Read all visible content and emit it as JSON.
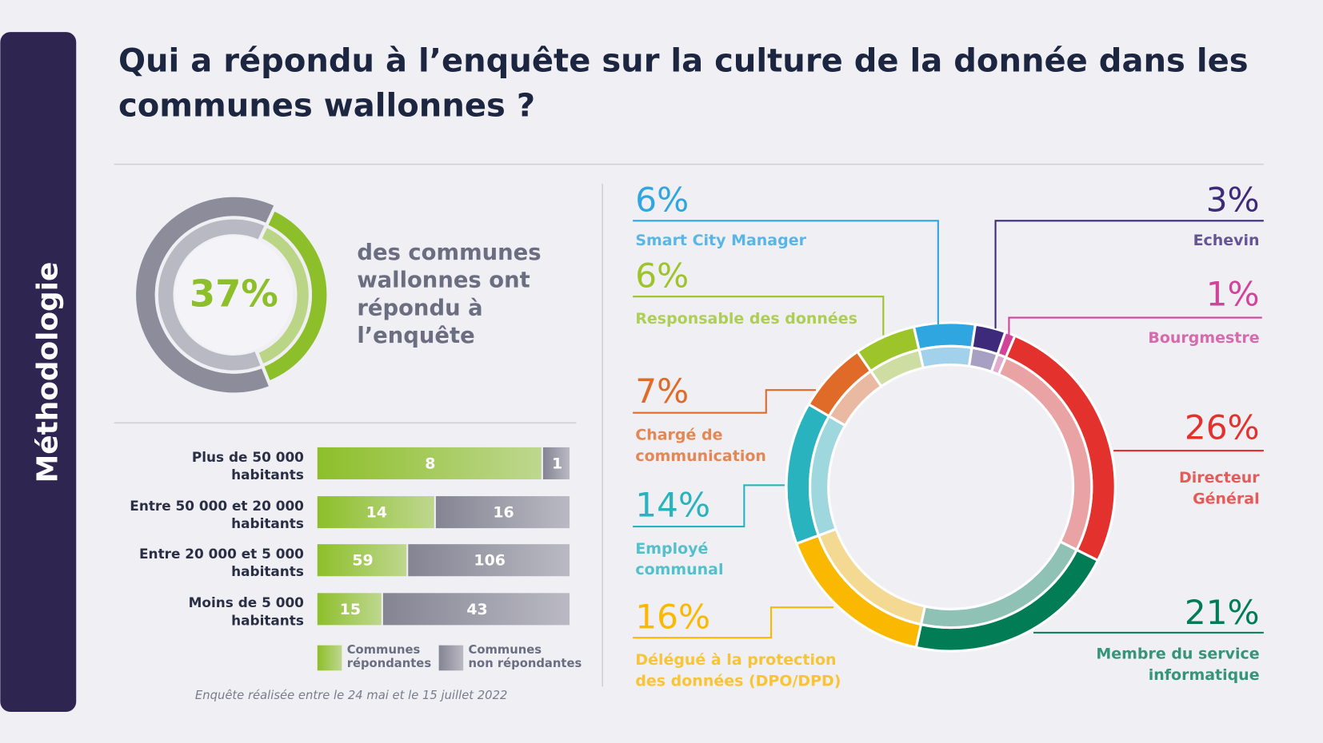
{
  "sidebar": "Méthodologie",
  "title": "Qui a répondu à l’enquête sur la culture de la donnée dans les communes wallonnes ?",
  "chart_data": [
    {
      "type": "pie",
      "values": [
        37,
        63
      ],
      "value_labels": [
        "37%",
        null
      ],
      "colors": [
        "#8dbf2a",
        "#8d8c9b"
      ],
      "annotation": "des communes\nwallonnes ont\nrépondu à\nl’enquête"
    },
    {
      "type": "bar",
      "orientation": "horizontal",
      "stack": "percent",
      "categories": [
        "Plus de 50 000\nhabitants",
        "Entre 50 000 et 20 000\nhabitants",
        "Entre 20 000 et 5 000\nhabitants",
        "Moins de 5 000\nhabitants"
      ],
      "series": [
        {
          "name": "Communes\nrépondantes",
          "color": "#8dbf2a",
          "values": [
            8,
            14,
            59,
            15
          ]
        },
        {
          "name": "Communes\nnon répondantes",
          "color": "#858493",
          "values": [
            1,
            16,
            106,
            43
          ]
        }
      ],
      "note": "Enquête réalisée entre le 24 mai et le 15 juillet 2022"
    },
    {
      "type": "pie",
      "categories": [
        "Smart City Manager",
        "Echevin",
        "Bourgmestre",
        "Directeur\nGénéral",
        "Membre du service\ninformatique",
        "Délégué à la protection\ndes données (DPO/DPD)",
        "Employé\ncommunal",
        "Chargé de\ncommunication",
        "Responsable des données"
      ],
      "values": [
        6,
        3,
        1,
        26,
        21,
        16,
        14,
        7,
        6
      ],
      "value_labels": [
        "6%",
        "3%",
        "1%",
        "26%",
        "21%",
        "16%",
        "14%",
        "7%",
        "6%"
      ],
      "colors": [
        "#2fa6e0",
        "#3d2a7a",
        "#d1449a",
        "#e3312d",
        "#017c55",
        "#fbb800",
        "#28b3bf",
        "#e06a27",
        "#9dc428"
      ]
    }
  ]
}
